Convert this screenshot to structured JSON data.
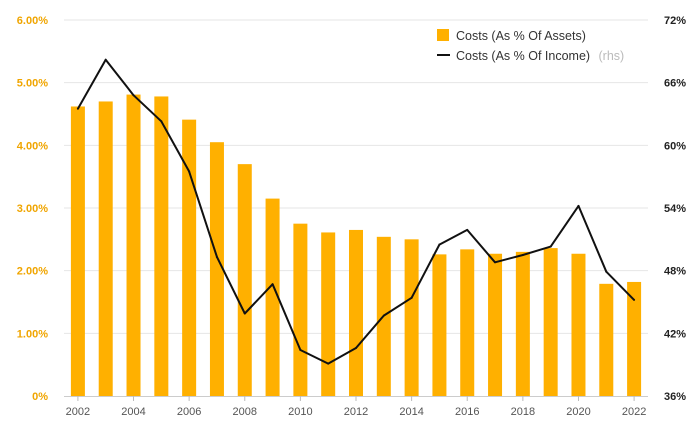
{
  "chart_data": {
    "type": "bar",
    "x": [
      2002,
      2003,
      2004,
      2005,
      2006,
      2007,
      2008,
      2009,
      2010,
      2011,
      2012,
      2013,
      2014,
      2015,
      2016,
      2017,
      2018,
      2019,
      2020,
      2021,
      2022
    ],
    "x_tick_labels": [
      "2002",
      "2004",
      "2006",
      "2008",
      "2010",
      "2012",
      "2014",
      "2016",
      "2018",
      "2020",
      "2022"
    ],
    "y_left": {
      "ylim": [
        0,
        6
      ],
      "ticks": [
        0,
        1,
        2,
        3,
        4,
        5,
        6
      ],
      "tick_labels": [
        "0%",
        "1.00%",
        "2.00%",
        "3.00%",
        "4.00%",
        "5.00%",
        "6.00%"
      ]
    },
    "y_right": {
      "ylim": [
        36,
        72
      ],
      "ticks": [
        36,
        42,
        48,
        54,
        60,
        66,
        72
      ],
      "tick_labels": [
        "36%",
        "42%",
        "48%",
        "54%",
        "60%",
        "66%",
        "72%"
      ]
    },
    "series": [
      {
        "name": "Costs (As % Of Assets)",
        "type": "bar",
        "axis": "left",
        "color": "#ffb000",
        "values": [
          4.62,
          4.7,
          4.81,
          4.78,
          4.41,
          4.05,
          3.7,
          3.15,
          2.75,
          2.61,
          2.65,
          2.54,
          2.5,
          2.26,
          2.34,
          2.27,
          2.3,
          2.36,
          2.27,
          1.79,
          1.82
        ]
      },
      {
        "name": "Costs (As % Of Income)",
        "legend_suffix": "(rhs)",
        "type": "line",
        "axis": "right",
        "color": "#111111",
        "values": [
          63.5,
          68.2,
          64.8,
          62.3,
          57.5,
          49.3,
          43.9,
          46.7,
          40.4,
          39.1,
          40.6,
          43.7,
          45.4,
          50.5,
          51.9,
          48.8,
          49.5,
          50.3,
          54.2,
          47.9,
          45.2
        ]
      }
    ],
    "grid": true,
    "legend_placement": "top-right"
  }
}
